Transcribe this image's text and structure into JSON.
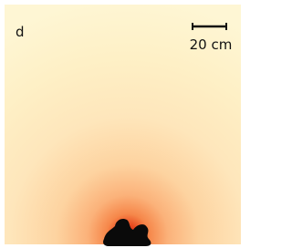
{
  "panel_label": "d",
  "scale_bar": {
    "label": "20 cm"
  }
}
